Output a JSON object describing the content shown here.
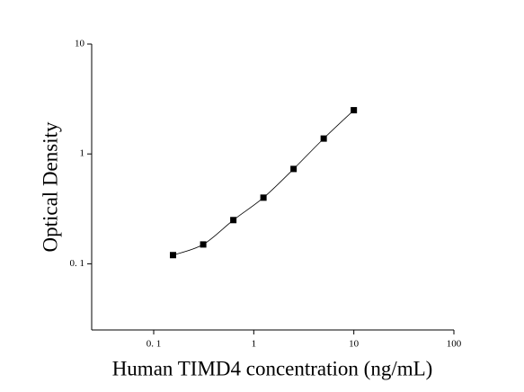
{
  "chart_data": {
    "type": "scatter",
    "x_label": "Human TIMD4 concentration (ng/mL)",
    "y_label": "Optical Density",
    "x": [
      0.156,
      0.3125,
      0.625,
      1.25,
      2.5,
      5,
      10
    ],
    "values": [
      0.12,
      0.15,
      0.25,
      0.4,
      0.73,
      1.38,
      2.5
    ],
    "color": "#000000",
    "fit_curve": true,
    "xscale": "log",
    "yscale": "log",
    "xlim": [
      0.024,
      100
    ],
    "ylim": [
      0.025,
      10
    ],
    "xticks": [
      {
        "value": 0.1,
        "label": "0. 1"
      },
      1,
      10,
      100
    ],
    "yticks": [
      {
        "value": 0.1,
        "label": "0. 1"
      },
      1,
      10
    ]
  }
}
